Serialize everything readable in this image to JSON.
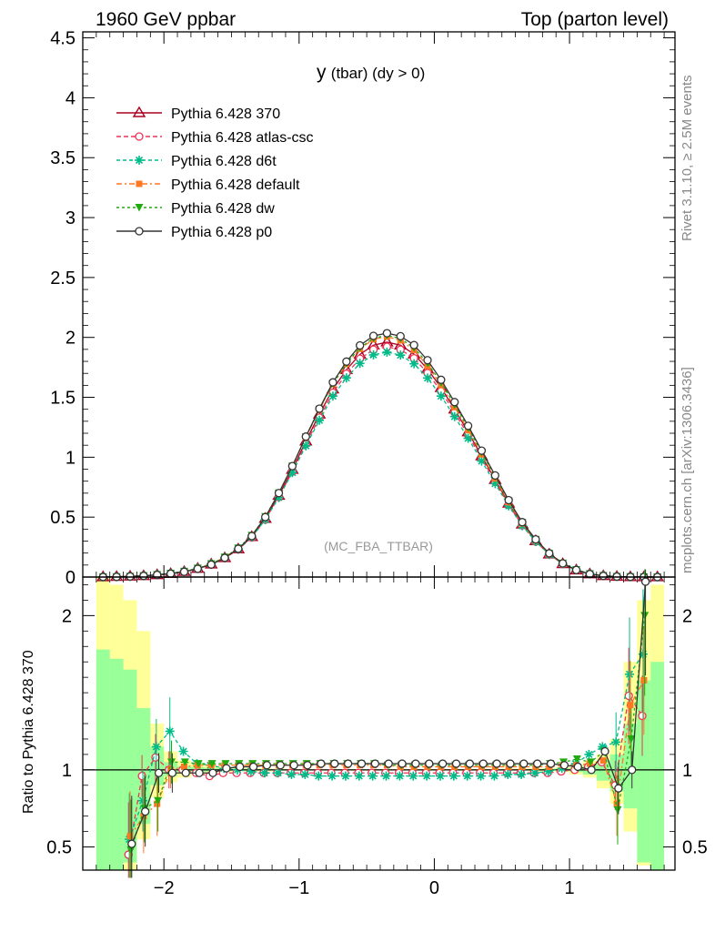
{
  "header": {
    "left": "1960 GeV ppbar",
    "right": "Top (parton level)"
  },
  "plot_title": "y (tbar) (dy > 0)",
  "plot_title_main": "y",
  "plot_title_rest": "(tbar) (dy > 0)",
  "analysis_label": "(MC_FBA_TTBAR)",
  "side_text_top": "Rivet 3.1.10, ≥ 2.5M events",
  "side_text_bottom": "mcplots.cern.ch [arXiv:1306.3436]",
  "ratio_ylabel": "Ratio to Pythia 6.428 370",
  "chart_data": [
    {
      "type": "line",
      "panel": "main",
      "xlim": [
        -2.6,
        1.78
      ],
      "ylim": [
        0,
        4.55
      ],
      "y_ticks": [
        {
          "v": 0,
          "label": "0"
        },
        {
          "v": 0.5,
          "label": "0.5"
        },
        {
          "v": 1,
          "label": "1"
        },
        {
          "v": 1.5,
          "label": "1.5"
        },
        {
          "v": 2,
          "label": "2"
        },
        {
          "v": 2.5,
          "label": "2.5"
        },
        {
          "v": 3,
          "label": "3"
        },
        {
          "v": 3.5,
          "label": "3.5"
        },
        {
          "v": 4,
          "label": "4"
        },
        {
          "v": 4.5,
          "label": "4.5"
        }
      ],
      "x_centers": [
        -2.45,
        -2.35,
        -2.25,
        -2.15,
        -2.05,
        -1.95,
        -1.85,
        -1.75,
        -1.65,
        -1.55,
        -1.45,
        -1.35,
        -1.25,
        -1.15,
        -1.05,
        -0.95,
        -0.85,
        -0.75,
        -0.65,
        -0.55,
        -0.45,
        -0.35,
        -0.25,
        -0.15,
        -0.05,
        0.05,
        0.15,
        0.25,
        0.35,
        0.45,
        0.55,
        0.65,
        0.75,
        0.85,
        0.95,
        1.05,
        1.15,
        1.25,
        1.35,
        1.45,
        1.55,
        1.65
      ],
      "series": [
        {
          "name": "Pythia 6.428 370",
          "color": "#aa0022",
          "dash": "",
          "marker": "triangle-open",
          "values": [
            0.001,
            0.003,
            0.006,
            0.01,
            0.018,
            0.028,
            0.045,
            0.071,
            0.107,
            0.16,
            0.233,
            0.336,
            0.488,
            0.68,
            0.897,
            1.133,
            1.358,
            1.568,
            1.73,
            1.858,
            1.935,
            1.96,
            1.935,
            1.86,
            1.735,
            1.58,
            1.4,
            1.21,
            1.01,
            0.812,
            0.615,
            0.44,
            0.302,
            0.19,
            0.11,
            0.058,
            0.025,
            0.01,
            0.004,
            0.0015,
            0.0005,
            0.0002
          ]
        },
        {
          "name": "Pythia 6.428 atlas-csc",
          "color": "#ee3355",
          "dash": "5,3",
          "marker": "circle-open",
          "values": [
            0.0008,
            0.002,
            0.005,
            0.01,
            0.019,
            0.028,
            0.044,
            0.07,
            0.104,
            0.157,
            0.229,
            0.33,
            0.48,
            0.668,
            0.88,
            1.11,
            1.33,
            1.538,
            1.697,
            1.822,
            1.898,
            1.922,
            1.898,
            1.826,
            1.703,
            1.551,
            1.373,
            1.186,
            0.99,
            0.796,
            0.603,
            0.432,
            0.297,
            0.187,
            0.109,
            0.058,
            0.026,
            0.011,
            0.004,
            0.0015,
            0.0005,
            0.0002
          ]
        },
        {
          "name": "Pythia 6.428 d6t",
          "color": "#00bb88",
          "dash": "4,3",
          "marker": "star",
          "values": [
            0.0008,
            0.002,
            0.005,
            0.01,
            0.02,
            0.031,
            0.048,
            0.074,
            0.11,
            0.162,
            0.234,
            0.334,
            0.479,
            0.664,
            0.872,
            1.095,
            1.308,
            1.51,
            1.662,
            1.783,
            1.854,
            1.877,
            1.852,
            1.78,
            1.661,
            1.51,
            1.339,
            1.158,
            0.968,
            0.78,
            0.594,
            0.428,
            0.296,
            0.188,
            0.111,
            0.06,
            0.028,
            0.013,
            0.005,
            0.0018,
            0.0006,
            0.0002
          ]
        },
        {
          "name": "Pythia 6.428 default",
          "color": "#ff7722",
          "dash": "6,3,2,3",
          "marker": "square",
          "values": [
            0.0008,
            0.002,
            0.005,
            0.01,
            0.019,
            0.03,
            0.047,
            0.073,
            0.11,
            0.165,
            0.24,
            0.346,
            0.502,
            0.7,
            0.924,
            1.165,
            1.395,
            1.61,
            1.778,
            1.905,
            1.985,
            2.006,
            1.975,
            1.895,
            1.762,
            1.602,
            1.418,
            1.226,
            1.024,
            0.823,
            0.624,
            0.447,
            0.307,
            0.194,
            0.113,
            0.06,
            0.026,
            0.011,
            0.004,
            0.0015,
            0.0005,
            0.0002
          ]
        },
        {
          "name": "Pythia 6.428 dw",
          "color": "#22aa11",
          "dash": "3,3",
          "marker": "triangle-down",
          "values": [
            0.0008,
            0.002,
            0.005,
            0.01,
            0.02,
            0.03,
            0.047,
            0.073,
            0.11,
            0.165,
            0.241,
            0.347,
            0.503,
            0.701,
            0.925,
            1.168,
            1.4,
            1.615,
            1.783,
            1.913,
            1.993,
            2.017,
            1.99,
            1.913,
            1.785,
            1.622,
            1.438,
            1.245,
            1.04,
            0.836,
            0.634,
            0.454,
            0.312,
            0.197,
            0.115,
            0.061,
            0.027,
            0.011,
            0.004,
            0.0015,
            0.0005,
            0.0002
          ]
        },
        {
          "name": "Pythia 6.428 p0",
          "color": "#333333",
          "dash": "",
          "marker": "circle-open",
          "values": [
            0.0005,
            0.002,
            0.005,
            0.01,
            0.018,
            0.028,
            0.044,
            0.069,
            0.104,
            0.16,
            0.236,
            0.342,
            0.5,
            0.701,
            0.926,
            1.172,
            1.405,
            1.625,
            1.798,
            1.933,
            2.013,
            2.035,
            2.01,
            1.936,
            1.81,
            1.646,
            1.46,
            1.262,
            1.055,
            0.848,
            0.642,
            0.458,
            0.314,
            0.198,
            0.114,
            0.059,
            0.025,
            0.01,
            0.004,
            0.0015,
            0.0005,
            0.0002
          ]
        }
      ]
    },
    {
      "type": "line",
      "panel": "ratio",
      "ylabel": "Ratio to Pythia 6.428 370",
      "xlim": [
        -2.6,
        1.78
      ],
      "ylim": [
        0.35,
        2.25
      ],
      "y_ticks": [
        {
          "v": 0.5,
          "label": "0.5"
        },
        {
          "v": 1,
          "label": "1"
        },
        {
          "v": 2,
          "label": "2"
        }
      ],
      "x_ticks": [
        {
          "v": -2,
          "label": "−2"
        },
        {
          "v": -1,
          "label": "−1"
        },
        {
          "v": 0,
          "label": "0"
        },
        {
          "v": 1,
          "label": "1"
        }
      ],
      "x_centers": [
        -2.45,
        -2.35,
        -2.25,
        -2.15,
        -2.05,
        -1.95,
        -1.85,
        -1.75,
        -1.65,
        -1.55,
        -1.45,
        -1.35,
        -1.25,
        -1.15,
        -1.05,
        -0.95,
        -0.85,
        -0.75,
        -0.65,
        -0.55,
        -0.45,
        -0.35,
        -0.25,
        -0.15,
        -0.05,
        0.05,
        0.15,
        0.25,
        0.35,
        0.45,
        0.55,
        0.65,
        0.75,
        0.85,
        0.95,
        1.05,
        1.15,
        1.25,
        1.35,
        1.45,
        1.55,
        1.65
      ],
      "band_yellow": {
        "lo": [
          0.3,
          0.3,
          0.35,
          0.55,
          0.82,
          0.92,
          0.95,
          0.97,
          0.98,
          0.985,
          0.99,
          0.99,
          0.99,
          0.995,
          0.995,
          0.995,
          0.995,
          0.995,
          0.995,
          0.995,
          0.995,
          0.995,
          0.995,
          0.995,
          0.995,
          0.995,
          0.995,
          0.995,
          0.995,
          0.995,
          0.995,
          0.995,
          0.99,
          0.99,
          0.985,
          0.97,
          0.95,
          0.88,
          0.78,
          0.6,
          0.38,
          0.3
        ],
        "hi": [
          2.3,
          2.2,
          2.1,
          1.9,
          1.3,
          1.12,
          1.06,
          1.04,
          1.025,
          1.02,
          1.015,
          1.012,
          1.01,
          1.008,
          1.006,
          1.006,
          1.005,
          1.005,
          1.005,
          1.005,
          1.005,
          1.005,
          1.005,
          1.005,
          1.005,
          1.005,
          1.005,
          1.005,
          1.006,
          1.006,
          1.007,
          1.008,
          1.01,
          1.012,
          1.018,
          1.03,
          1.06,
          1.1,
          1.2,
          1.7,
          2.1,
          2.2
        ]
      },
      "band_green": {
        "lo": [
          0.3,
          0.3,
          0.4,
          0.65,
          0.9,
          0.96,
          0.98,
          0.985,
          0.99,
          0.993,
          0.995,
          0.996,
          0.997,
          0.998,
          0.998,
          0.998,
          0.998,
          0.998,
          0.998,
          0.998,
          0.998,
          0.998,
          0.998,
          0.998,
          0.998,
          0.998,
          0.998,
          0.998,
          0.998,
          0.998,
          0.998,
          0.998,
          0.997,
          0.996,
          0.993,
          0.985,
          0.97,
          0.93,
          0.86,
          0.75,
          0.4,
          0.3
        ],
        "hi": [
          1.78,
          1.72,
          1.65,
          1.4,
          1.15,
          1.05,
          1.025,
          1.018,
          1.012,
          1.009,
          1.007,
          1.006,
          1.005,
          1.004,
          1.003,
          1.003,
          1.003,
          1.003,
          1.003,
          1.003,
          1.003,
          1.003,
          1.003,
          1.003,
          1.003,
          1.003,
          1.003,
          1.003,
          1.003,
          1.003,
          1.004,
          1.004,
          1.005,
          1.006,
          1.009,
          1.015,
          1.03,
          1.06,
          1.1,
          1.3,
          1.58,
          1.7
        ]
      },
      "x_points": [
        -2.25,
        -2.15,
        -2.05,
        -1.95,
        -1.85,
        -1.75,
        -1.65,
        -1.55,
        -1.45,
        -1.35,
        -1.25,
        -1.15,
        -1.05,
        -0.95,
        -0.85,
        -0.75,
        -0.65,
        -0.55,
        -0.45,
        -0.35,
        -0.25,
        -0.15,
        -0.05,
        0.05,
        0.15,
        0.25,
        0.35,
        0.45,
        0.55,
        0.65,
        0.75,
        0.85,
        0.95,
        1.05,
        1.15,
        1.25,
        1.35,
        1.45,
        1.55
      ],
      "series": [
        {
          "name": "Pythia 6.428 atlas-csc",
          "color": "#ee3355",
          "dash": "5,3",
          "marker": "circle-open",
          "values": [
            0.45,
            0.96,
            1.08,
            1.0,
            1.0,
            0.98,
            0.96,
            0.98,
            0.98,
            0.98,
            0.98,
            0.98,
            0.98,
            0.98,
            0.98,
            0.98,
            0.98,
            0.98,
            0.98,
            0.98,
            0.98,
            0.98,
            0.98,
            0.98,
            0.98,
            0.98,
            0.98,
            0.98,
            0.98,
            0.98,
            0.98,
            0.98,
            0.99,
            1.0,
            1.02,
            1.05,
            0.9,
            1.48,
            1.35
          ]
        },
        {
          "name": "Pythia 6.428 d6t",
          "color": "#00bb88",
          "dash": "4,3",
          "marker": "star",
          "values": [
            0.55,
            0.8,
            1.15,
            1.25,
            1.12,
            1.04,
            1.03,
            1.01,
            1.0,
            0.99,
            0.98,
            0.98,
            0.97,
            0.97,
            0.96,
            0.96,
            0.96,
            0.96,
            0.96,
            0.96,
            0.96,
            0.96,
            0.96,
            0.96,
            0.96,
            0.96,
            0.96,
            0.96,
            0.97,
            0.97,
            0.98,
            0.99,
            1.01,
            1.04,
            1.1,
            1.15,
            1.18,
            1.62,
            1.75
          ]
        },
        {
          "name": "Pythia 6.428 default",
          "color": "#ff7722",
          "dash": "6,3,2,3",
          "marker": "square",
          "values": [
            0.57,
            0.7,
            0.78,
            1.0,
            1.02,
            1.03,
            1.03,
            1.03,
            1.03,
            1.03,
            1.03,
            1.03,
            1.03,
            1.03,
            1.03,
            1.03,
            1.03,
            1.03,
            1.03,
            1.03,
            1.02,
            1.02,
            1.02,
            1.02,
            1.02,
            1.02,
            1.02,
            1.02,
            1.02,
            1.02,
            1.02,
            1.02,
            1.03,
            1.03,
            1.04,
            1.06,
            0.78,
            1.42,
            1.58
          ]
        },
        {
          "name": "Pythia 6.428 dw",
          "color": "#22aa11",
          "dash": "3,3",
          "marker": "triangle-down",
          "values": [
            0.48,
            0.75,
            0.8,
            1.05,
            1.05,
            1.04,
            1.04,
            1.04,
            1.04,
            1.04,
            1.04,
            1.04,
            1.04,
            1.04,
            1.04,
            1.04,
            1.04,
            1.04,
            1.04,
            1.03,
            1.03,
            1.03,
            1.03,
            1.03,
            1.03,
            1.03,
            1.03,
            1.03,
            1.03,
            1.03,
            1.03,
            1.04,
            1.05,
            1.07,
            1.05,
            1.12,
            0.74,
            1.2,
            2.0
          ]
        },
        {
          "name": "Pythia 6.428 p0",
          "color": "#333333",
          "dash": "",
          "marker": "circle-open",
          "values": [
            0.52,
            0.73,
            0.98,
            0.98,
            0.98,
            0.98,
            0.98,
            1.01,
            1.02,
            1.02,
            1.03,
            1.03,
            1.03,
            1.03,
            1.04,
            1.04,
            1.04,
            1.04,
            1.04,
            1.04,
            1.04,
            1.04,
            1.04,
            1.04,
            1.04,
            1.04,
            1.04,
            1.04,
            1.04,
            1.04,
            1.04,
            1.04,
            1.03,
            1.02,
            1.0,
            1.12,
            0.88,
            1.0,
            2.22
          ]
        }
      ]
    }
  ]
}
